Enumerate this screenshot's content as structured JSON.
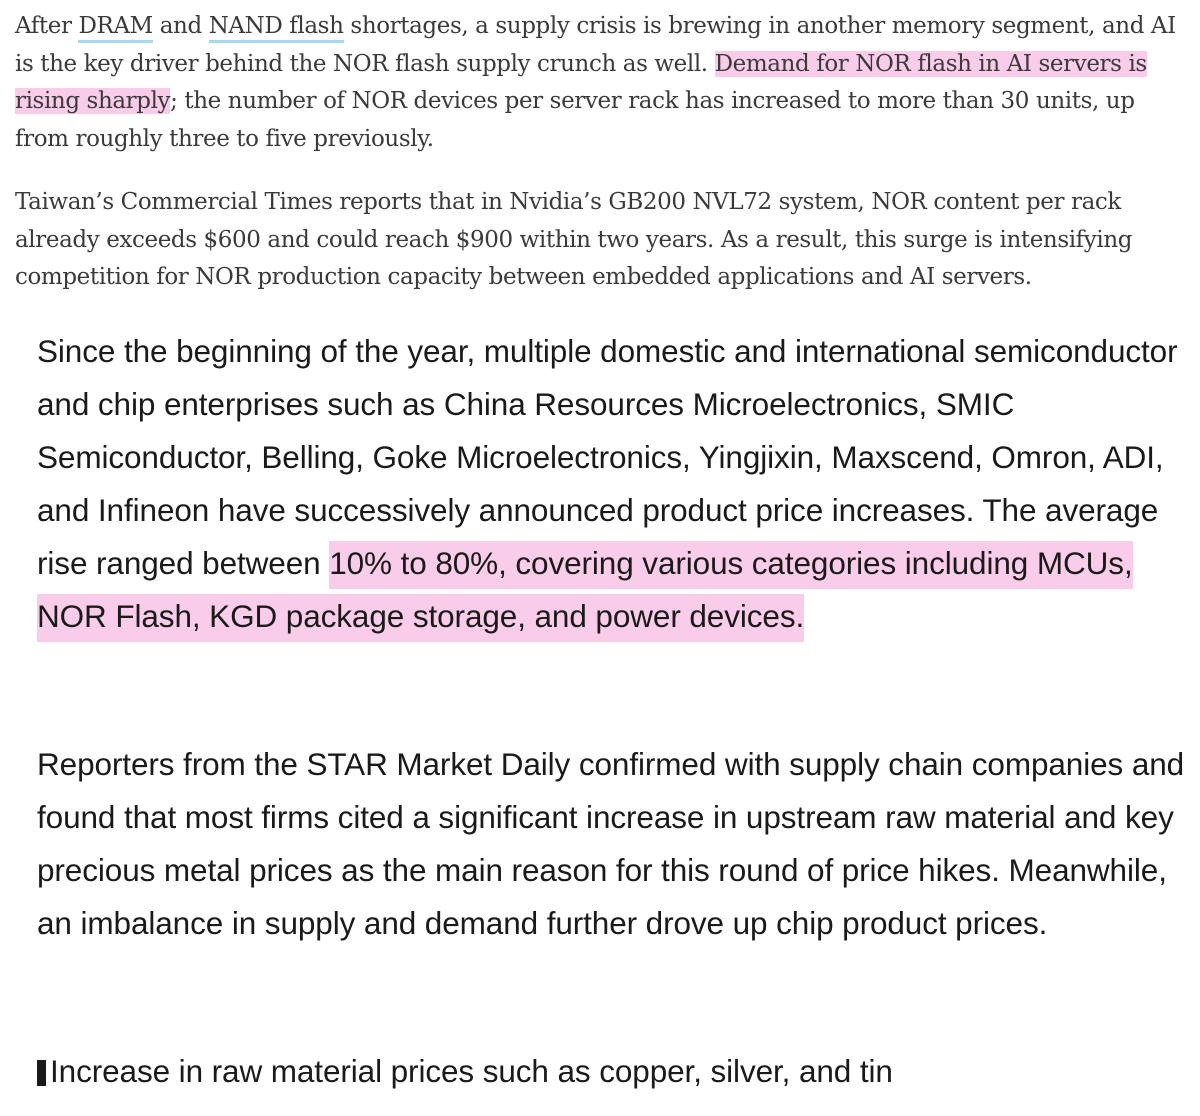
{
  "para1": {
    "text_a": "After ",
    "link_dram": "DRAM",
    "text_b": " and ",
    "link_nand": "NAND flash",
    "text_c": " shortages, a supply crisis is brewing in another memory segment, and AI is the key driver behind the NOR flash supply crunch as well. ",
    "highlight": "Demand for NOR flash in AI servers is rising sharply",
    "text_d": "; the number of NOR devices per server rack has increased to more than 30 units, up from roughly three to five previously."
  },
  "para2": {
    "text": "Taiwan’s Commercial Times reports that in Nvidia’s GB200 NVL72 system, NOR content per rack already exceeds $600 and could reach $900 within two years. As a result, this surge is intensifying competition for NOR production capacity between embedded applications and AI servers."
  },
  "para3": {
    "text_a": "Since the beginning of the year, multiple domestic and international semiconductor and chip enterprises such as China Resources Microelectronics, SMIC Semiconductor, Belling, Goke Microelectronics, Yingjixin, Maxscend, Omron, ADI, and Infineon have successively announced product price increases. The average rise ranged between ",
    "highlight": "10% to 80%, covering various categories including MCUs, NOR Flash, KGD package storage, and power devices."
  },
  "para4": {
    "text": "Reporters from the STAR Market Daily confirmed with supply chain companies and found that most firms cited a significant increase in upstream raw material and key precious metal prices as the main reason for this round of price hikes. Meanwhile, an imbalance in supply and demand further drove up chip product prices."
  },
  "section_heading": {
    "text": "Increase in raw material prices such as copper, silver, and tin"
  },
  "colors": {
    "highlight": "#f9cdea",
    "link_underline": "#a9d8ee",
    "serif_text": "#3a3a3a",
    "sans_text": "#1a1a1a"
  }
}
